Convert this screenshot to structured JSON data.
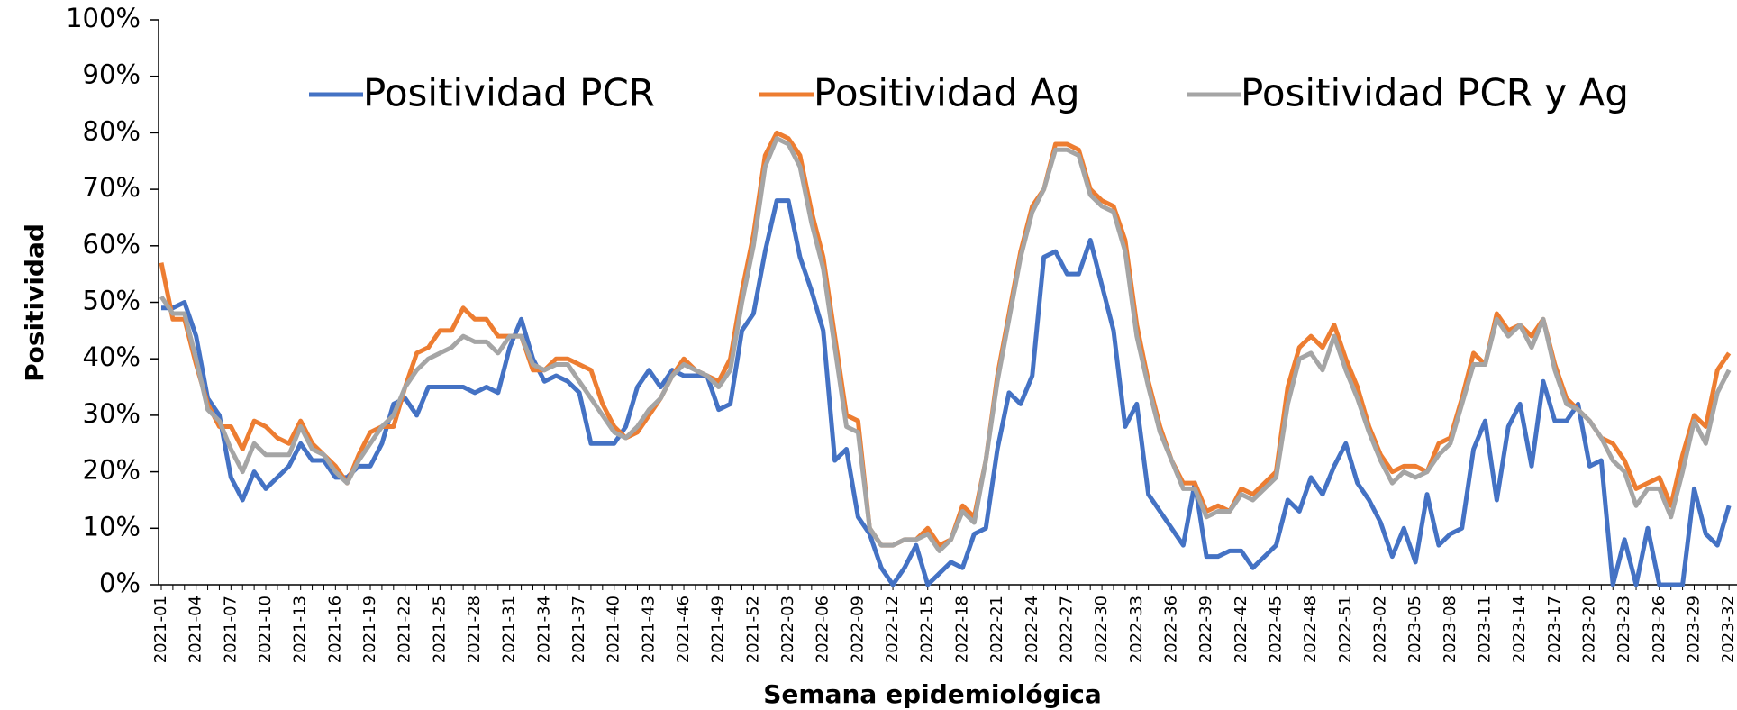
{
  "chart_data": {
    "type": "line",
    "y_label": "Positividad",
    "x_label": "Semana epidemiológica",
    "categories": [
      "2021-01",
      null,
      null,
      "2021-04",
      null,
      null,
      "2021-07",
      null,
      null,
      "2021-10",
      null,
      null,
      "2021-13",
      null,
      null,
      "2021-16",
      null,
      null,
      "2021-19",
      null,
      null,
      "2021-22",
      null,
      null,
      "2021-25",
      null,
      null,
      "2021-28",
      null,
      null,
      "2021-31",
      null,
      null,
      "2021-34",
      null,
      null,
      "2021-37",
      null,
      null,
      "2021-40",
      null,
      null,
      "2021-43",
      null,
      null,
      "2021-46",
      null,
      null,
      "2021-49",
      null,
      null,
      "2021-52",
      null,
      null,
      "2022-03",
      null,
      null,
      "2022-06",
      null,
      null,
      "2022-09",
      null,
      null,
      "2022-12",
      null,
      null,
      "2022-15",
      null,
      null,
      "2022-18",
      null,
      null,
      "2022-21",
      null,
      null,
      "2022-24",
      null,
      null,
      "2022-27",
      null,
      null,
      "2022-30",
      null,
      null,
      "2022-33",
      null,
      null,
      "2022-36",
      null,
      null,
      "2022-39",
      null,
      null,
      "2022-42",
      null,
      null,
      "2022-45",
      null,
      null,
      "2022-48",
      null,
      null,
      "2022-51",
      null,
      null,
      "2023-02",
      null,
      null,
      "2023-05",
      null,
      null,
      "2023-08",
      null,
      null,
      "2023-11",
      null,
      null,
      "2023-14",
      null,
      null,
      "2023-17",
      null,
      null,
      "2023-20",
      null,
      null,
      "2023-23",
      null,
      null,
      "2023-26",
      null,
      null,
      "2023-29",
      null,
      null,
      "2023-32"
    ],
    "series": [
      {
        "name": "Positividad PCR",
        "color": "#4472c4",
        "values": [
          49,
          49,
          50,
          44,
          33,
          30,
          19,
          15,
          20,
          17,
          19,
          21,
          25,
          22,
          22,
          19,
          19,
          21,
          21,
          25,
          32,
          33,
          30,
          35,
          35,
          35,
          35,
          34,
          35,
          34,
          42,
          47,
          40,
          36,
          37,
          36,
          34,
          25,
          25,
          25,
          28,
          35,
          38,
          35,
          38,
          37,
          37,
          37,
          31,
          32,
          45,
          48,
          59,
          68,
          68,
          58,
          52,
          45,
          22,
          24,
          12,
          9,
          3,
          0,
          3,
          7,
          0,
          2,
          4,
          3,
          9,
          10,
          24,
          34,
          32,
          37,
          58,
          59,
          55,
          55,
          61,
          53,
          45,
          28,
          32,
          16,
          13,
          10,
          7,
          18,
          5,
          5,
          6,
          6,
          3,
          5,
          7,
          15,
          13,
          19,
          16,
          21,
          25,
          18,
          15,
          11,
          5,
          10,
          4,
          16,
          7,
          9,
          10,
          24,
          29,
          15,
          28,
          32,
          21,
          36,
          29,
          29,
          32,
          21,
          22,
          0,
          8,
          0,
          10,
          0,
          0,
          0,
          17,
          9,
          7,
          14
        ]
      },
      {
        "name": "Positividad Ag",
        "color": "#ed7d31",
        "values": [
          57,
          47,
          47,
          39,
          32,
          28,
          28,
          24,
          29,
          28,
          26,
          25,
          29,
          25,
          23,
          21,
          18,
          23,
          27,
          28,
          28,
          35,
          41,
          42,
          45,
          45,
          49,
          47,
          47,
          44,
          44,
          44,
          38,
          38,
          40,
          40,
          39,
          38,
          32,
          28,
          26,
          27,
          30,
          33,
          37,
          40,
          38,
          37,
          36,
          40,
          52,
          62,
          76,
          80,
          79,
          76,
          66,
          58,
          44,
          30,
          29,
          10,
          7,
          7,
          8,
          8,
          10,
          7,
          8,
          14,
          12,
          22,
          37,
          48,
          59,
          67,
          70,
          78,
          78,
          77,
          70,
          68,
          67,
          61,
          46,
          36,
          28,
          22,
          18,
          18,
          13,
          14,
          13,
          17,
          16,
          18,
          20,
          35,
          42,
          44,
          42,
          46,
          40,
          35,
          28,
          23,
          20,
          21,
          21,
          20,
          25,
          26,
          33,
          41,
          39,
          48,
          45,
          46,
          44,
          47,
          39,
          33,
          31,
          29,
          26,
          25,
          22,
          17,
          18,
          19,
          14,
          23,
          30,
          28,
          38,
          41
        ]
      },
      {
        "name": "Positividad PCR y Ag",
        "color": "#a5a5a5",
        "values": [
          51,
          48,
          48,
          40,
          31,
          29,
          24,
          20,
          25,
          23,
          23,
          23,
          28,
          24,
          23,
          20,
          18,
          22,
          25,
          28,
          30,
          35,
          38,
          40,
          41,
          42,
          44,
          43,
          43,
          41,
          44,
          44,
          39,
          38,
          39,
          39,
          36,
          33,
          30,
          27,
          26,
          28,
          31,
          33,
          37,
          39,
          38,
          37,
          35,
          38,
          50,
          60,
          74,
          79,
          78,
          74,
          64,
          56,
          42,
          28,
          27,
          10,
          7,
          7,
          8,
          8,
          9,
          6,
          8,
          13,
          11,
          22,
          36,
          47,
          58,
          66,
          70,
          77,
          77,
          76,
          69,
          67,
          66,
          59,
          44,
          35,
          27,
          22,
          17,
          17,
          12,
          13,
          13,
          16,
          15,
          17,
          19,
          32,
          40,
          41,
          38,
          44,
          38,
          33,
          27,
          22,
          18,
          20,
          19,
          20,
          23,
          25,
          32,
          39,
          39,
          47,
          44,
          46,
          42,
          47,
          38,
          32,
          31,
          29,
          26,
          22,
          20,
          14,
          17,
          17,
          12,
          20,
          29,
          25,
          34,
          38
        ]
      }
    ],
    "ylim": [
      0,
      100
    ],
    "yticks": [
      {
        "value": 0,
        "label": "0%"
      },
      {
        "value": 10,
        "label": "10%"
      },
      {
        "value": 20,
        "label": "20%"
      },
      {
        "value": 30,
        "label": "30%"
      },
      {
        "value": 40,
        "label": "40%"
      },
      {
        "value": 50,
        "label": "50%"
      },
      {
        "value": 60,
        "label": "60%"
      },
      {
        "value": 70,
        "label": "70%"
      },
      {
        "value": 80,
        "label": "80%"
      },
      {
        "value": 90,
        "label": "90%"
      },
      {
        "value": 100,
        "label": "100%"
      }
    ],
    "grid": false
  }
}
